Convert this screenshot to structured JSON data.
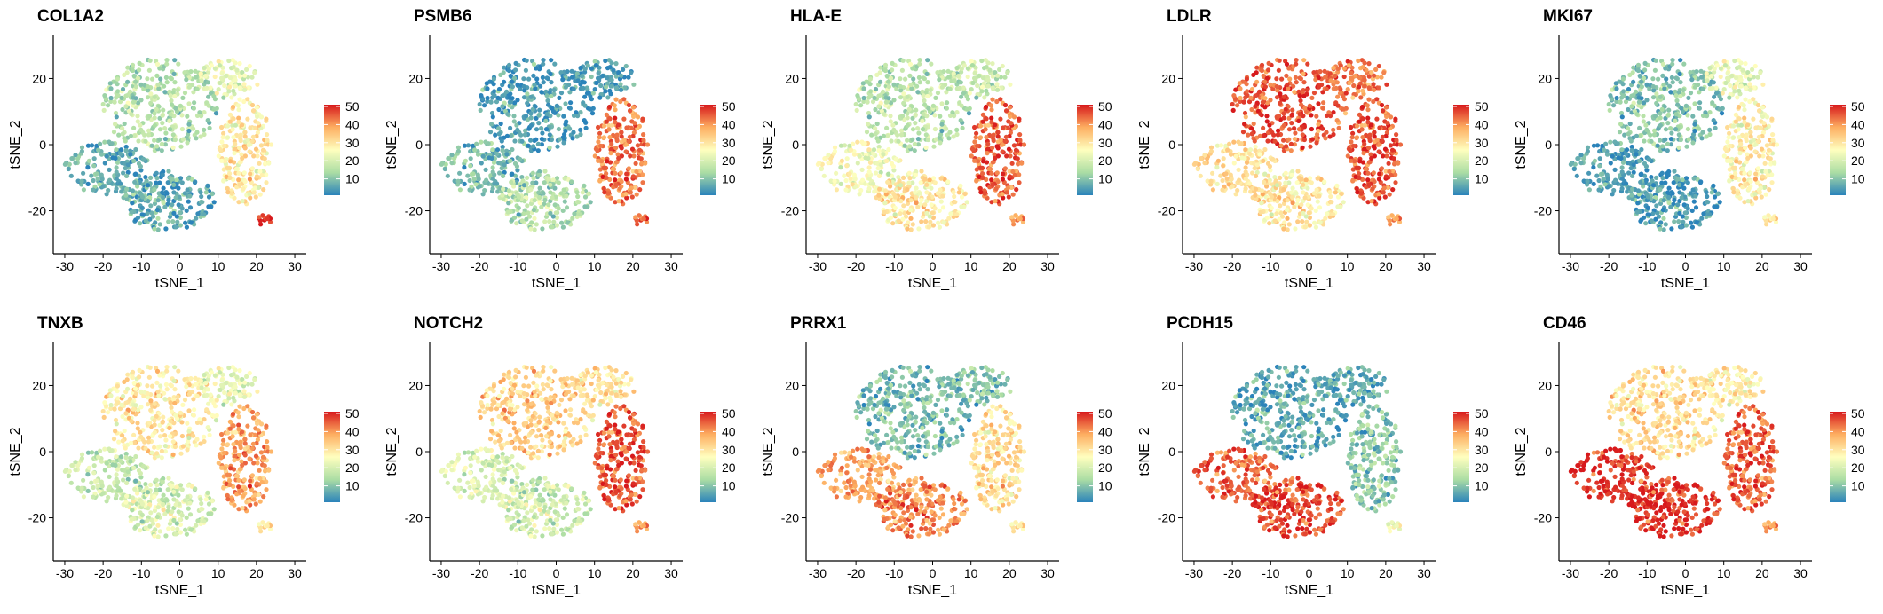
{
  "chart_data": {
    "type": "scatter",
    "layout": "2 rows x 5 columns",
    "xlabel": "tSNE_1",
    "ylabel": "tSNE_2",
    "xlim": [
      -33,
      33
    ],
    "ylim": [
      -33,
      33
    ],
    "x_ticks": [
      -30,
      -20,
      -10,
      0,
      10,
      20,
      30
    ],
    "y_ticks": [
      -20,
      0,
      20
    ],
    "legend_ticks": [
      10,
      20,
      30,
      40,
      50
    ],
    "color_range": [
      0,
      50
    ],
    "colormap": [
      "#2b83ba",
      "#abdda4",
      "#ffffbf",
      "#fdae61",
      "#d7191c"
    ],
    "grid": false,
    "legend_position": "right",
    "panels": [
      {
        "title": "COL1A2",
        "levels": {
          "top_left": 14,
          "top_right": 22,
          "left_mid": 6,
          "bottom_left": 5,
          "right": 28,
          "tip": 50
        }
      },
      {
        "title": "PSMB6",
        "levels": {
          "top_left": 3,
          "top_right": 4,
          "left_mid": 8,
          "bottom_left": 14,
          "right": 42,
          "tip": 45
        }
      },
      {
        "title": "HLA-E",
        "levels": {
          "top_left": 15,
          "top_right": 18,
          "left_mid": 24,
          "bottom_left": 28,
          "right": 44,
          "tip": 40
        }
      },
      {
        "title": "LDLR",
        "levels": {
          "top_left": 45,
          "top_right": 42,
          "left_mid": 30,
          "bottom_left": 28,
          "right": 45,
          "tip": 40
        }
      },
      {
        "title": "MKI67",
        "levels": {
          "top_left": 9,
          "top_right": 22,
          "left_mid": 4,
          "bottom_left": 3,
          "right": 27,
          "tip": 30
        }
      },
      {
        "title": "TNXB",
        "levels": {
          "top_left": 28,
          "top_right": 22,
          "left_mid": 17,
          "bottom_left": 19,
          "right": 38,
          "tip": 30
        }
      },
      {
        "title": "NOTCH2",
        "levels": {
          "top_left": 32,
          "top_right": 30,
          "left_mid": 20,
          "bottom_left": 18,
          "right": 45,
          "tip": 40
        }
      },
      {
        "title": "PRRX1",
        "levels": {
          "top_left": 8,
          "top_right": 10,
          "left_mid": 38,
          "bottom_left": 40,
          "right": 30,
          "tip": 30
        }
      },
      {
        "title": "PCDH15",
        "levels": {
          "top_left": 5,
          "top_right": 6,
          "left_mid": 44,
          "bottom_left": 46,
          "right": 10,
          "tip": 25
        }
      },
      {
        "title": "CD46",
        "levels": {
          "top_left": 30,
          "top_right": 28,
          "left_mid": 48,
          "bottom_left": 48,
          "right": 44,
          "tip": 40
        }
      }
    ]
  }
}
